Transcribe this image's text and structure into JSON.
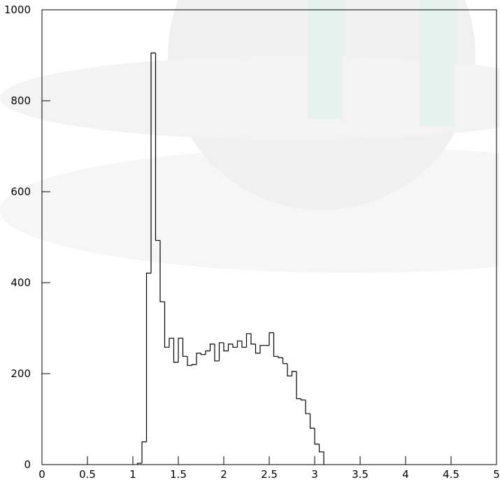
{
  "chart_data": {
    "type": "histogram",
    "bins": [
      1.05,
      1.1,
      1.15,
      1.2,
      1.25,
      1.3,
      1.35,
      1.4,
      1.45,
      1.5,
      1.55,
      1.6,
      1.65,
      1.7,
      1.75,
      1.8,
      1.85,
      1.9,
      1.95,
      2.0,
      2.05,
      2.1,
      2.15,
      2.2,
      2.25,
      2.3,
      2.35,
      2.4,
      2.45,
      2.5,
      2.55,
      2.6,
      2.65,
      2.7,
      2.75,
      2.8,
      2.85,
      2.9,
      2.95,
      3.0,
      3.05,
      3.1
    ],
    "values": [
      3,
      50,
      421,
      905,
      493,
      358,
      258,
      278,
      225,
      278,
      238,
      218,
      220,
      245,
      242,
      250,
      265,
      228,
      268,
      250,
      265,
      258,
      272,
      258,
      288,
      265,
      245,
      262,
      262,
      290,
      238,
      235,
      222,
      195,
      205,
      145,
      142,
      112,
      80,
      45,
      28
    ],
    "color": "#000000",
    "xlim": [
      0,
      5
    ],
    "xticks": [
      0,
      0.5,
      1,
      1.5,
      2,
      2.5,
      3,
      3.5,
      4,
      4.5,
      5
    ],
    "ylim": [
      0,
      1000
    ],
    "yticks": [
      0,
      200,
      400,
      600,
      800,
      1000
    ]
  }
}
